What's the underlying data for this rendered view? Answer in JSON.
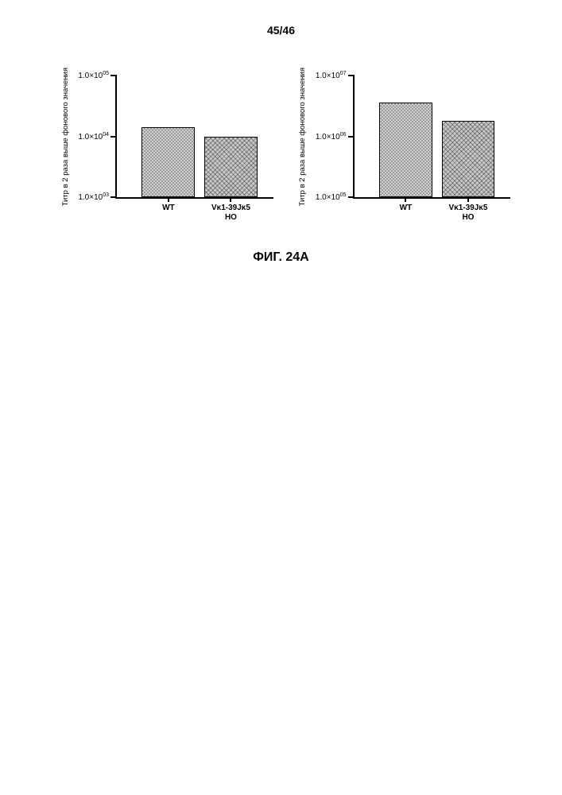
{
  "page_number": "45/46",
  "figure_caption": "ФИГ. 24A",
  "ylabel_text": "Титр в 2 раза выше фонового значения",
  "bar_colors": {
    "wt": "pattern-a",
    "ho": "pattern-b"
  },
  "bar_border_color": "#000000",
  "axis_color": "#000000",
  "bg_color": "#ffffff",
  "chart_left": {
    "type": "bar",
    "log_scale": true,
    "ylim_exp": [
      3,
      5
    ],
    "yticks": [
      {
        "label_html": "1.0×10<sup>05</sup>",
        "exp": 5
      },
      {
        "label_html": "1.0×10<sup>04</sup>",
        "exp": 4
      },
      {
        "label_html": "1.0×10<sup>03</sup>",
        "exp": 3
      }
    ],
    "bars": [
      {
        "key": "wt",
        "xlabel": "WT",
        "value": 14000.0,
        "pattern": "pattern-a"
      },
      {
        "key": "ho",
        "xlabel": "Vκ1-39Jκ5\nHO",
        "value": 10000.0,
        "pattern": "pattern-b"
      }
    ]
  },
  "chart_right": {
    "type": "bar",
    "log_scale": true,
    "ylim_exp": [
      5,
      7
    ],
    "yticks": [
      {
        "label_html": "1.0×10<sup>07</sup>",
        "exp": 7
      },
      {
        "label_html": "1.0×10<sup>06</sup>",
        "exp": 6
      },
      {
        "label_html": "1.0×10<sup>05</sup>",
        "exp": 5
      }
    ],
    "bars": [
      {
        "key": "wt",
        "xlabel": "WT",
        "value": 3600000.0,
        "pattern": "pattern-a"
      },
      {
        "key": "ho",
        "xlabel": "Vκ1-39Jκ5\nHO",
        "value": 1800000.0,
        "pattern": "pattern-b"
      }
    ]
  },
  "bar_layout": {
    "bar_width_pct": 34,
    "positions_pct": [
      16,
      56
    ]
  }
}
